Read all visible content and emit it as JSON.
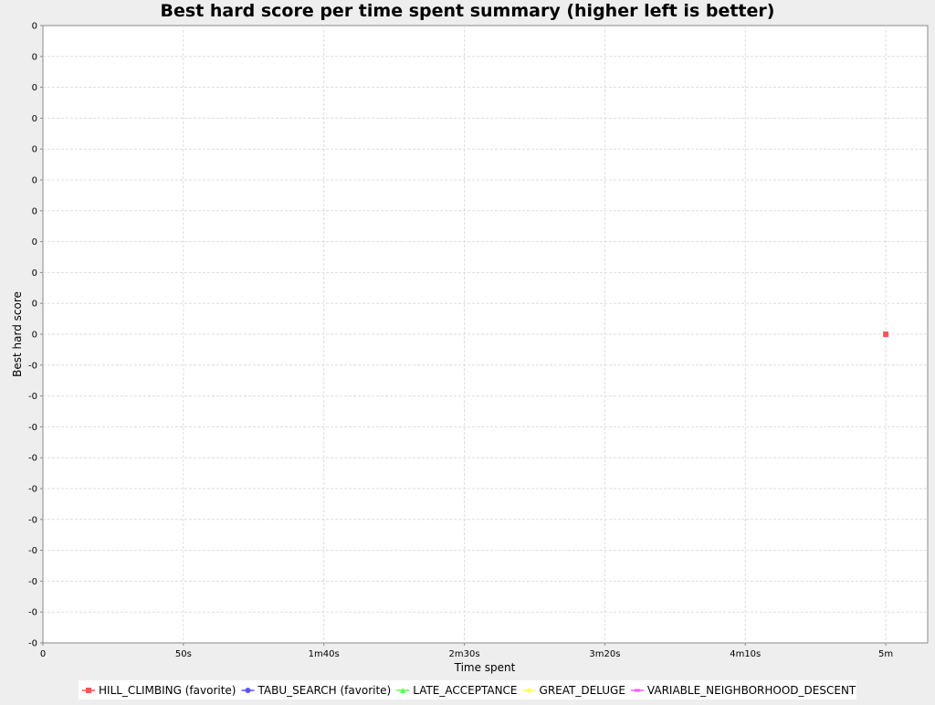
{
  "chart_data": {
    "type": "scatter",
    "title": "Best hard score per time spent summary (higher left is better)",
    "xlabel": "Time spent",
    "ylabel": "Best hard score",
    "x_unit": "seconds",
    "xlim": [
      0,
      315
    ],
    "ylim": [
      -1,
      1
    ],
    "x_ticks": [
      {
        "value": 0,
        "label": "0"
      },
      {
        "value": 50,
        "label": "50s"
      },
      {
        "value": 100,
        "label": "1m40s"
      },
      {
        "value": 150,
        "label": "2m30s"
      },
      {
        "value": 200,
        "label": "3m20s"
      },
      {
        "value": 250,
        "label": "4m10s"
      },
      {
        "value": 300,
        "label": "5m"
      }
    ],
    "y_tick_labels": [
      "0",
      "0",
      "0",
      "0",
      "0",
      "0",
      "0",
      "0",
      "0",
      "0",
      "0",
      "-0",
      "-0",
      "-0",
      "-0",
      "-0",
      "-0",
      "-0",
      "-0",
      "-0",
      "-0"
    ],
    "grid": true,
    "legend_position": "bottom",
    "series": [
      {
        "name": "HILL_CLIMBING (favorite)",
        "color": "#ff5555",
        "marker": "square",
        "points": [
          {
            "x": 300,
            "y": 0
          }
        ]
      },
      {
        "name": "TABU_SEARCH (favorite)",
        "color": "#5555ff",
        "marker": "circle",
        "points": []
      },
      {
        "name": "LATE_ACCEPTANCE",
        "color": "#55ff55",
        "marker": "triangle-up",
        "points": []
      },
      {
        "name": "GREAT_DELUGE",
        "color": "#ffff55",
        "marker": "diamond",
        "points": []
      },
      {
        "name": "VARIABLE_NEIGHBORHOOD_DESCENT",
        "color": "#ff55ff",
        "marker": "rect-horizontal",
        "points": []
      }
    ]
  }
}
